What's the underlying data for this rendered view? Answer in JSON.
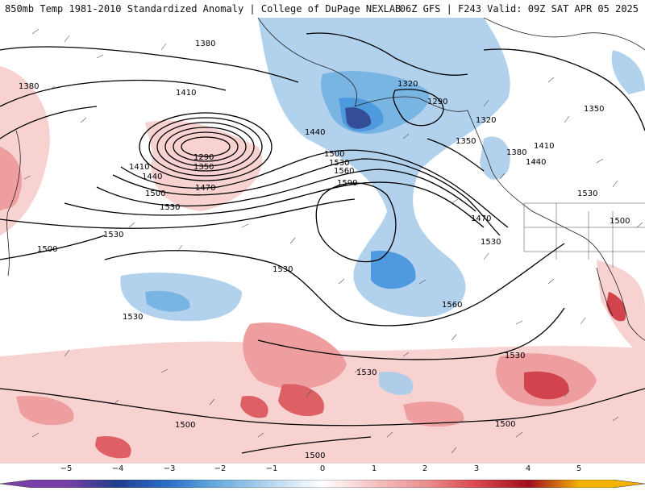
{
  "header": {
    "left_title": "850mb Temp 1981-2010 Standardized Anomaly | College of DuPage NEXLAB",
    "right_title": "06Z GFS | F243 Valid: 09Z SAT APR 05 2025"
  },
  "contour_labels": [
    {
      "id": "c1380a",
      "text": "1380"
    },
    {
      "id": "c1380b",
      "text": "1380"
    },
    {
      "id": "c1410a",
      "text": "1410"
    },
    {
      "id": "c1410b",
      "text": "1410"
    },
    {
      "id": "c1440a",
      "text": "1440"
    },
    {
      "id": "c1440b",
      "text": "1440"
    },
    {
      "id": "c1290a",
      "text": "1290"
    },
    {
      "id": "c1350a",
      "text": "1350"
    },
    {
      "id": "c1470a",
      "text": "1470"
    },
    {
      "id": "c1500a",
      "text": "1500"
    },
    {
      "id": "c1530a",
      "text": "1530"
    },
    {
      "id": "c1530b",
      "text": "1530"
    },
    {
      "id": "c1500b",
      "text": "1500"
    },
    {
      "id": "c1530c",
      "text": "1530"
    },
    {
      "id": "c1530d",
      "text": "1530"
    },
    {
      "id": "c1320a",
      "text": "1320"
    },
    {
      "id": "c1290b",
      "text": "1290"
    },
    {
      "id": "c1320b",
      "text": "1320"
    },
    {
      "id": "c1350b",
      "text": "1350"
    },
    {
      "id": "c1350c",
      "text": "1350"
    },
    {
      "id": "c1380c",
      "text": "1380"
    },
    {
      "id": "c1410c",
      "text": "1410"
    },
    {
      "id": "c1440c",
      "text": "1440"
    },
    {
      "id": "c1500c",
      "text": "1500"
    },
    {
      "id": "c1530e",
      "text": "1530"
    },
    {
      "id": "c1560a",
      "text": "1560"
    },
    {
      "id": "c1590a",
      "text": "1590"
    },
    {
      "id": "c1470b",
      "text": "1470"
    },
    {
      "id": "c1530f",
      "text": "1530"
    },
    {
      "id": "c1530g",
      "text": "1530"
    },
    {
      "id": "c1500d",
      "text": "1500"
    },
    {
      "id": "c1560b",
      "text": "1560"
    },
    {
      "id": "c1530h",
      "text": "1530"
    },
    {
      "id": "c1530i",
      "text": "1530"
    },
    {
      "id": "c1500e",
      "text": "1500"
    },
    {
      "id": "c1500f",
      "text": "1500"
    },
    {
      "id": "c1500g",
      "text": "1500"
    }
  ],
  "colorbar": {
    "ticks": [
      "−5",
      "−4",
      "−3",
      "−2",
      "−1",
      "0",
      "1",
      "2",
      "3",
      "4",
      "5"
    ],
    "colors": [
      "#7b3fa8",
      "#1f3d8c",
      "#2a70c8",
      "#6aaee0",
      "#b8d6ef",
      "#ffffff",
      "#f6c3c3",
      "#ec8e8e",
      "#d9454a",
      "#a10e1e",
      "#f2b400"
    ]
  },
  "colors": {
    "cold_strong": "#1f3d8c",
    "cold_mid": "#3d8fdc",
    "cold_light": "#a9cdeb",
    "warm_light": "#f7c9c9",
    "warm_mid": "#e88585",
    "warm_strong": "#c9242f",
    "contour": "#000000"
  }
}
